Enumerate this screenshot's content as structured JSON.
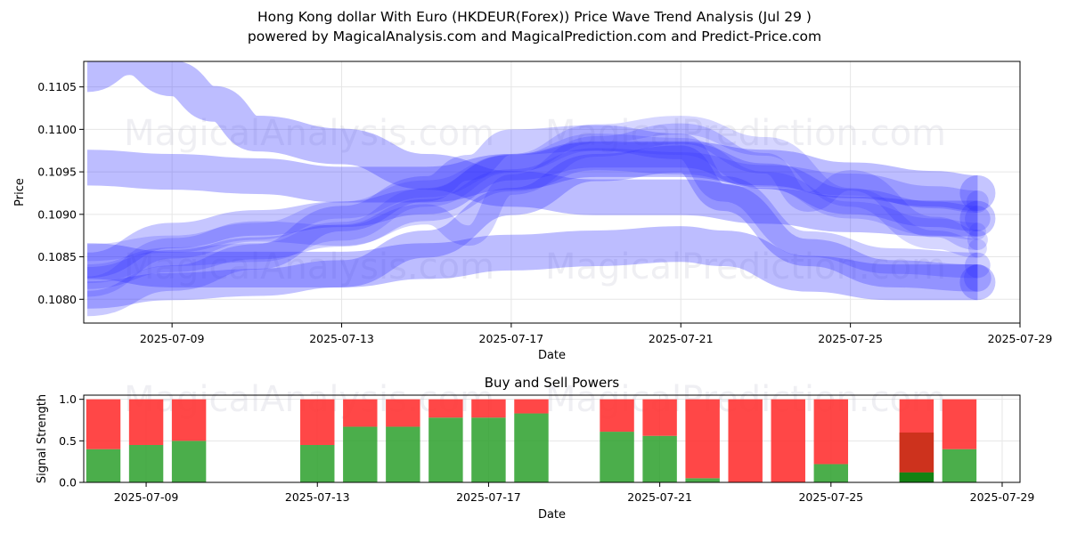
{
  "title_line1": "Hong Kong dollar With Euro (HKDEUR(Forex)) Price Wave Trend Analysis (Jul 29 )",
  "title_line2": "powered by MagicalAnalysis.com and MagicalPrediction.com and Predict-Price.com",
  "watermarks": [
    "MagicalAnalysis.com",
    "MagicalPrediction.com"
  ],
  "colors": {
    "wave": "#3333ff",
    "buy": "#2ca02c",
    "sell": "#ff3333",
    "sell_dark": "#c83018",
    "buy_dark": "#108010"
  },
  "chart_data": [
    {
      "type": "area",
      "ylabel": "Price",
      "xlabel": "Date",
      "xlim": [
        "2025-07-06T22:00",
        "2025-07-29"
      ],
      "ylim": [
        0.10772,
        0.1108
      ],
      "x_ticks": [
        "2025-07-09",
        "2025-07-13",
        "2025-07-17",
        "2025-07-21",
        "2025-07-25",
        "2025-07-29"
      ],
      "y_ticks": [
        0.108,
        0.1085,
        0.109,
        0.1095,
        0.11,
        0.1105
      ],
      "grid": true,
      "bands": [
        {
          "name": "",
          "width": 0.00042,
          "opacity": 0.32,
          "x": [
            "2025-07-07",
            "2025-07-08",
            "2025-07-09",
            "2025-07-10",
            "2025-07-11",
            "2025-07-13",
            "2025-07-15",
            "2025-07-17",
            "2025-07-19",
            "2025-07-21",
            "2025-07-23",
            "2025-07-25",
            "2025-07-27",
            "2025-07-28"
          ],
          "y": [
            0.11065,
            0.11085,
            0.1106,
            0.1103,
            0.10995,
            0.1098,
            0.1095,
            0.1093,
            0.1092,
            0.1092,
            0.1091,
            0.109,
            0.10895,
            0.10895
          ]
        },
        {
          "name": "",
          "width": 0.00042,
          "opacity": 0.32,
          "x": [
            "2025-07-07",
            "2025-07-09",
            "2025-07-11",
            "2025-07-13",
            "2025-07-15",
            "2025-07-17",
            "2025-07-19",
            "2025-07-21",
            "2025-07-23",
            "2025-07-25",
            "2025-07-27",
            "2025-07-28"
          ],
          "y": [
            0.10955,
            0.1095,
            0.10945,
            0.10935,
            0.10935,
            0.1095,
            0.10965,
            0.10965,
            0.10955,
            0.1094,
            0.1093,
            0.10925
          ]
        },
        {
          "name": "",
          "width": 0.00042,
          "opacity": 0.32,
          "x": [
            "2025-07-07",
            "2025-07-09",
            "2025-07-11",
            "2025-07-13",
            "2025-07-15",
            "2025-07-17",
            "2025-07-19",
            "2025-07-21",
            "2025-07-22",
            "2025-07-24",
            "2025-07-26",
            "2025-07-28"
          ],
          "y": [
            0.10845,
            0.10835,
            0.10835,
            0.10835,
            0.10845,
            0.10855,
            0.1086,
            0.10865,
            0.1086,
            0.1083,
            0.1082,
            0.1082
          ]
        },
        {
          "name": "",
          "width": 0.00032,
          "opacity": 0.3,
          "x": [
            "2025-07-07",
            "2025-07-09",
            "2025-07-11",
            "2025-07-13",
            "2025-07-15",
            "2025-07-17",
            "2025-07-19",
            "2025-07-21",
            "2025-07-22",
            "2025-07-24",
            "2025-07-26",
            "2025-07-28"
          ],
          "y": [
            0.10805,
            0.10815,
            0.1082,
            0.1083,
            0.10865,
            0.10915,
            0.10955,
            0.10965,
            0.1092,
            0.10855,
            0.1083,
            0.10825
          ]
        },
        {
          "name": "",
          "width": 0.0003,
          "opacity": 0.28,
          "x": [
            "2025-07-07",
            "2025-07-09",
            "2025-07-11",
            "2025-07-13",
            "2025-07-15",
            "2025-07-17",
            "2025-07-19",
            "2025-07-21",
            "2025-07-23",
            "2025-07-25",
            "2025-07-27",
            "2025-07-28"
          ],
          "y": [
            0.1084,
            0.10875,
            0.1089,
            0.109,
            0.10915,
            0.10955,
            0.1097,
            0.1097,
            0.10945,
            0.10915,
            0.109,
            0.10895
          ]
        },
        {
          "name": "",
          "width": 0.0003,
          "opacity": 0.26,
          "x": [
            "2025-07-07",
            "2025-07-09",
            "2025-07-11",
            "2025-07-13",
            "2025-07-15",
            "2025-07-16",
            "2025-07-17",
            "2025-07-19",
            "2025-07-21",
            "2025-07-22",
            "2025-07-24",
            "2025-07-26",
            "2025-07-28"
          ],
          "y": [
            0.10795,
            0.10825,
            0.1085,
            0.10895,
            0.1093,
            0.10955,
            0.10985,
            0.1099,
            0.1098,
            0.1093,
            0.10865,
            0.10845,
            0.1084
          ]
        },
        {
          "name": "",
          "width": 0.00026,
          "opacity": 0.24,
          "x": [
            "2025-07-07",
            "2025-07-09",
            "2025-07-11",
            "2025-07-13",
            "2025-07-15",
            "2025-07-17",
            "2025-07-19",
            "2025-07-21",
            "2025-07-23",
            "2025-07-25",
            "2025-07-27",
            "2025-07-28"
          ],
          "y": [
            0.10825,
            0.10845,
            0.1086,
            0.10875,
            0.10905,
            0.1094,
            0.10965,
            0.1096,
            0.10945,
            0.10935,
            0.1092,
            0.10915
          ]
        },
        {
          "name": "",
          "width": 0.00024,
          "opacity": 0.22,
          "x": [
            "2025-07-07",
            "2025-07-09",
            "2025-07-11",
            "2025-07-13",
            "2025-07-15",
            "2025-07-16",
            "2025-07-17",
            "2025-07-19",
            "2025-07-21",
            "2025-07-23",
            "2025-07-24",
            "2025-07-25",
            "2025-07-27",
            "2025-07-28"
          ],
          "y": [
            0.10815,
            0.1086,
            0.1088,
            0.10875,
            0.109,
            0.10875,
            0.10935,
            0.1098,
            0.10995,
            0.1096,
            0.10915,
            0.1094,
            0.10885,
            0.1087
          ]
        },
        {
          "name": "",
          "width": 0.00022,
          "opacity": 0.2,
          "x": [
            "2025-07-07",
            "2025-07-09",
            "2025-07-11",
            "2025-07-13",
            "2025-07-15",
            "2025-07-17",
            "2025-07-19",
            "2025-07-21",
            "2025-07-23",
            "2025-07-25",
            "2025-07-27",
            "2025-07-28"
          ],
          "y": [
            0.1083,
            0.1085,
            0.10855,
            0.1088,
            0.1092,
            0.1096,
            0.10995,
            0.11005,
            0.1098,
            0.1092,
            0.1087,
            0.1086
          ]
        },
        {
          "name": "",
          "width": 0.0002,
          "opacity": 0.2,
          "x": [
            "2025-07-07",
            "2025-07-09",
            "2025-07-11",
            "2025-07-13",
            "2025-07-15",
            "2025-07-17",
            "2025-07-19",
            "2025-07-21",
            "2025-07-23",
            "2025-07-25",
            "2025-07-27",
            "2025-07-28"
          ],
          "y": [
            0.10855,
            0.10865,
            0.1088,
            0.10905,
            0.1093,
            0.1096,
            0.10985,
            0.1098,
            0.1094,
            0.10905,
            0.10885,
            0.1088
          ]
        }
      ]
    },
    {
      "type": "bar",
      "title": "Buy and Sell Powers",
      "xlabel": "Date",
      "ylabel": "Signal Strength",
      "xlim": [
        "2025-07-07T13:00",
        "2025-07-29T10:00"
      ],
      "ylim": [
        0,
        1.05
      ],
      "x_ticks": [
        "2025-07-09",
        "2025-07-13",
        "2025-07-17",
        "2025-07-21",
        "2025-07-25",
        "2025-07-29"
      ],
      "y_ticks": [
        0.0,
        0.5,
        1.0
      ],
      "grid": true,
      "bars": [
        {
          "date": "2025-07-08",
          "buy": 0.4,
          "sell": 0.6
        },
        {
          "date": "2025-07-09",
          "buy": 0.45,
          "sell": 0.55
        },
        {
          "date": "2025-07-10",
          "buy": 0.5,
          "sell": 0.5
        },
        {
          "date": "2025-07-13",
          "buy": 0.45,
          "sell": 0.55
        },
        {
          "date": "2025-07-14",
          "buy": 0.67,
          "sell": 0.33
        },
        {
          "date": "2025-07-15",
          "buy": 0.67,
          "sell": 0.33
        },
        {
          "date": "2025-07-16",
          "buy": 0.78,
          "sell": 0.22
        },
        {
          "date": "2025-07-17",
          "buy": 0.78,
          "sell": 0.22
        },
        {
          "date": "2025-07-18",
          "buy": 0.83,
          "sell": 0.17
        },
        {
          "date": "2025-07-20",
          "buy": 0.61,
          "sell": 0.39
        },
        {
          "date": "2025-07-21",
          "buy": 0.56,
          "sell": 0.44
        },
        {
          "date": "2025-07-22",
          "buy": 0.05,
          "sell": 0.95
        },
        {
          "date": "2025-07-23",
          "buy": 0.0,
          "sell": 1.0
        },
        {
          "date": "2025-07-24",
          "buy": 0.0,
          "sell": 1.0
        },
        {
          "date": "2025-07-25",
          "buy": 0.22,
          "sell": 0.78
        },
        {
          "date": "2025-07-27",
          "buy": 0.12,
          "sell": 0.88,
          "overlay_buy": 0.6,
          "overlay_sell": 0.4
        },
        {
          "date": "2025-07-28",
          "buy": 0.4,
          "sell": 0.6
        }
      ]
    }
  ]
}
